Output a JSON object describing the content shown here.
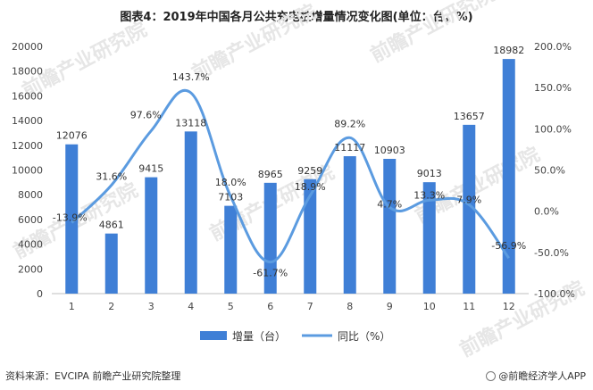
{
  "title": "图表4：2019年中国各月公共充电桩增量情况变化图(单位：台，%)",
  "chart_data": {
    "type": "bar+line",
    "categories": [
      "1",
      "2",
      "3",
      "4",
      "5",
      "6",
      "7",
      "8",
      "9",
      "10",
      "11",
      "12"
    ],
    "series": [
      {
        "name": "增量（台）",
        "type": "bar",
        "axis": "left",
        "values": [
          12076,
          4861,
          9415,
          13118,
          7103,
          8965,
          9259,
          11117,
          10903,
          9013,
          13657,
          18982
        ]
      },
      {
        "name": "同比（%）",
        "type": "line",
        "axis": "right",
        "values": [
          -13.9,
          31.6,
          97.6,
          143.7,
          18.0,
          -61.7,
          18.9,
          89.2,
          4.7,
          13.3,
          7.9,
          -56.9
        ]
      }
    ],
    "bar_labels": [
      "12076",
      "4861",
      "9415",
      "13118",
      "7103",
      "8965",
      "9259",
      "11117",
      "10903",
      "9013",
      "13657",
      "18982"
    ],
    "line_labels": [
      "-13.9%",
      "31.6%",
      "97.6%",
      "143.7%",
      "18.0%",
      "-61.7%",
      "18.9%",
      "89.2%",
      "4.7%",
      "13.3%",
      "7.9%",
      "-56.9%"
    ],
    "y_left": {
      "min": 0,
      "max": 20000,
      "ticks": [
        "0",
        "2000",
        "4000",
        "6000",
        "8000",
        "10000",
        "12000",
        "14000",
        "16000",
        "18000",
        "20000"
      ]
    },
    "y_right": {
      "min": -100,
      "max": 200,
      "ticks": [
        "-100.0%",
        "-50.0%",
        "0.0%",
        "50.0%",
        "100.0%",
        "150.0%",
        "200.0%"
      ]
    },
    "legend_position": "bottom",
    "grid": false,
    "colors": {
      "bar": "#3f7fd6",
      "line": "#5b9be0"
    }
  },
  "watermark": "前瞻产业研究院",
  "footer": {
    "source": "资料来源：EVCIPA 前瞻产业研究院整理",
    "brand": "@前瞻经济学人APP"
  }
}
